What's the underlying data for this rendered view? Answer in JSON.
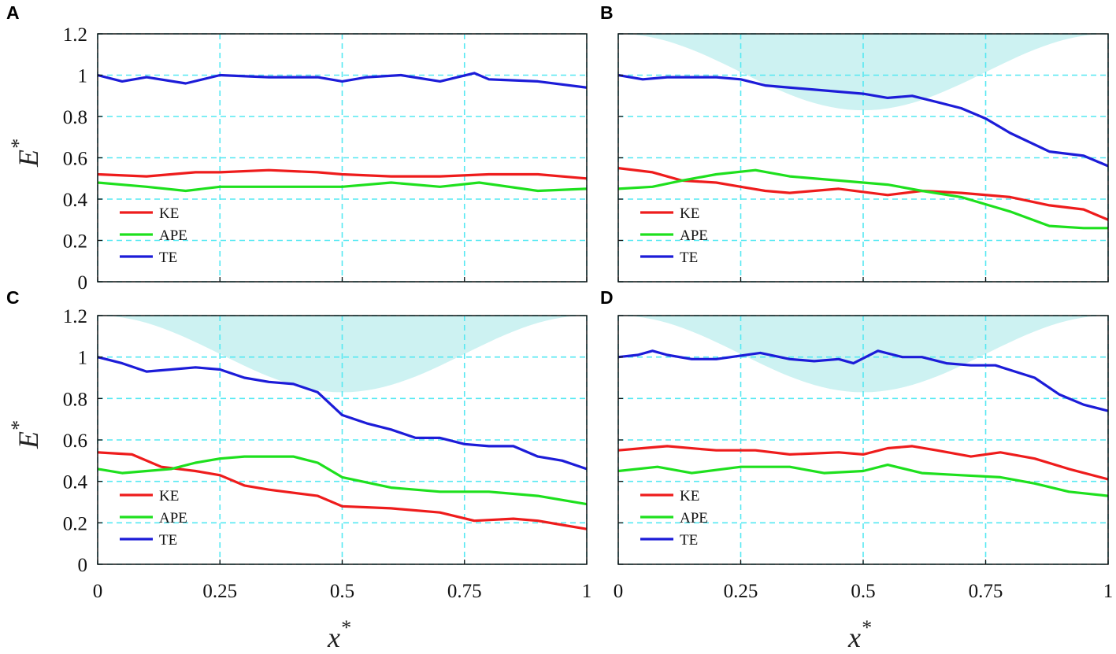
{
  "colors": {
    "KE": "#ee1c1c",
    "APE": "#1ee01e",
    "TE": "#1c1cd8",
    "grid": "#55e8f2",
    "topography": "#cdf2f2"
  },
  "axis_text": {
    "ylabel_main": "E",
    "ylabel_sup": "*",
    "xlabel_main": "x",
    "xlabel_sup": "*"
  },
  "chart_data": [
    {
      "panel": "A",
      "type": "line",
      "xlim": [
        0,
        1
      ],
      "ylim": [
        0,
        1.2
      ],
      "xticks": [
        "0",
        "0.25",
        "0.5",
        "0.75",
        "1"
      ],
      "yticks": [
        "0",
        "0.2",
        "0.4",
        "0.6",
        "0.8",
        "1",
        "1.2"
      ],
      "grid": true,
      "legend": "bottom-left",
      "topography": false,
      "series": [
        {
          "name": "KE",
          "x": [
            0,
            0.1,
            0.2,
            0.25,
            0.35,
            0.45,
            0.5,
            0.6,
            0.7,
            0.8,
            0.9,
            1
          ],
          "y": [
            0.52,
            0.51,
            0.53,
            0.53,
            0.54,
            0.53,
            0.52,
            0.51,
            0.51,
            0.52,
            0.52,
            0.5
          ]
        },
        {
          "name": "APE",
          "x": [
            0,
            0.1,
            0.18,
            0.25,
            0.35,
            0.45,
            0.5,
            0.6,
            0.7,
            0.78,
            0.9,
            1
          ],
          "y": [
            0.48,
            0.46,
            0.44,
            0.46,
            0.46,
            0.46,
            0.46,
            0.48,
            0.46,
            0.48,
            0.44,
            0.45
          ]
        },
        {
          "name": "TE",
          "x": [
            0,
            0.05,
            0.1,
            0.18,
            0.25,
            0.35,
            0.45,
            0.5,
            0.55,
            0.62,
            0.7,
            0.77,
            0.8,
            0.9,
            1
          ],
          "y": [
            1.0,
            0.97,
            0.99,
            0.96,
            1.0,
            0.99,
            0.99,
            0.97,
            0.99,
            1.0,
            0.97,
            1.01,
            0.98,
            0.97,
            0.94
          ]
        }
      ]
    },
    {
      "panel": "B",
      "type": "line",
      "xlim": [
        0,
        1
      ],
      "ylim": [
        0,
        1.2
      ],
      "xticks": [
        "0",
        "0.25",
        "0.5",
        "0.75",
        "1"
      ],
      "yticks": [
        "0",
        "0.2",
        "0.4",
        "0.6",
        "0.8",
        "1",
        "1.2"
      ],
      "grid": true,
      "legend": "bottom-left",
      "topography": true,
      "series": [
        {
          "name": "KE",
          "x": [
            0,
            0.07,
            0.13,
            0.2,
            0.25,
            0.3,
            0.35,
            0.45,
            0.55,
            0.62,
            0.7,
            0.8,
            0.88,
            0.95,
            1
          ],
          "y": [
            0.55,
            0.53,
            0.49,
            0.48,
            0.46,
            0.44,
            0.43,
            0.45,
            0.42,
            0.44,
            0.43,
            0.41,
            0.37,
            0.35,
            0.3
          ]
        },
        {
          "name": "APE",
          "x": [
            0,
            0.07,
            0.13,
            0.2,
            0.28,
            0.35,
            0.45,
            0.55,
            0.62,
            0.7,
            0.8,
            0.88,
            0.95,
            1
          ],
          "y": [
            0.45,
            0.46,
            0.49,
            0.52,
            0.54,
            0.51,
            0.49,
            0.47,
            0.44,
            0.41,
            0.34,
            0.27,
            0.26,
            0.26
          ]
        },
        {
          "name": "TE",
          "x": [
            0,
            0.05,
            0.1,
            0.2,
            0.25,
            0.3,
            0.4,
            0.5,
            0.55,
            0.6,
            0.65,
            0.7,
            0.75,
            0.8,
            0.88,
            0.95,
            1
          ],
          "y": [
            1.0,
            0.98,
            0.99,
            0.99,
            0.98,
            0.95,
            0.93,
            0.91,
            0.89,
            0.9,
            0.87,
            0.84,
            0.79,
            0.72,
            0.63,
            0.61,
            0.56
          ]
        }
      ]
    },
    {
      "panel": "C",
      "type": "line",
      "xlim": [
        0,
        1
      ],
      "ylim": [
        0,
        1.2
      ],
      "xticks": [
        "0",
        "0.25",
        "0.5",
        "0.75",
        "1"
      ],
      "yticks": [
        "0",
        "0.2",
        "0.4",
        "0.6",
        "0.8",
        "1",
        "1.2"
      ],
      "grid": true,
      "legend": "bottom-left",
      "topography": true,
      "series": [
        {
          "name": "KE",
          "x": [
            0,
            0.07,
            0.13,
            0.2,
            0.25,
            0.3,
            0.35,
            0.45,
            0.5,
            0.6,
            0.7,
            0.77,
            0.85,
            0.9,
            0.95,
            1
          ],
          "y": [
            0.54,
            0.53,
            0.47,
            0.45,
            0.43,
            0.38,
            0.36,
            0.33,
            0.28,
            0.27,
            0.25,
            0.21,
            0.22,
            0.21,
            0.19,
            0.17
          ]
        },
        {
          "name": "APE",
          "x": [
            0,
            0.05,
            0.1,
            0.15,
            0.2,
            0.25,
            0.3,
            0.35,
            0.4,
            0.45,
            0.5,
            0.6,
            0.7,
            0.8,
            0.9,
            1
          ],
          "y": [
            0.46,
            0.44,
            0.45,
            0.46,
            0.49,
            0.51,
            0.52,
            0.52,
            0.52,
            0.49,
            0.42,
            0.37,
            0.35,
            0.35,
            0.33,
            0.29
          ]
        },
        {
          "name": "TE",
          "x": [
            0,
            0.05,
            0.1,
            0.15,
            0.2,
            0.25,
            0.3,
            0.35,
            0.4,
            0.45,
            0.5,
            0.55,
            0.6,
            0.65,
            0.7,
            0.75,
            0.8,
            0.85,
            0.9,
            0.95,
            1
          ],
          "y": [
            1.0,
            0.97,
            0.93,
            0.94,
            0.95,
            0.94,
            0.9,
            0.88,
            0.87,
            0.83,
            0.72,
            0.68,
            0.65,
            0.61,
            0.61,
            0.58,
            0.57,
            0.57,
            0.52,
            0.5,
            0.46
          ]
        }
      ]
    },
    {
      "panel": "D",
      "type": "line",
      "xlim": [
        0,
        1
      ],
      "ylim": [
        0,
        1.2
      ],
      "xticks": [
        "0",
        "0.25",
        "0.5",
        "0.75",
        "1"
      ],
      "yticks": [
        "0",
        "0.2",
        "0.4",
        "0.6",
        "0.8",
        "1",
        "1.2"
      ],
      "grid": true,
      "legend": "bottom-left",
      "topography": true,
      "series": [
        {
          "name": "KE",
          "x": [
            0,
            0.05,
            0.1,
            0.2,
            0.28,
            0.35,
            0.45,
            0.5,
            0.55,
            0.6,
            0.65,
            0.72,
            0.78,
            0.85,
            0.92,
            1
          ],
          "y": [
            0.55,
            0.56,
            0.57,
            0.55,
            0.55,
            0.53,
            0.54,
            0.53,
            0.56,
            0.57,
            0.55,
            0.52,
            0.54,
            0.51,
            0.46,
            0.41
          ]
        },
        {
          "name": "APE",
          "x": [
            0,
            0.08,
            0.15,
            0.25,
            0.35,
            0.42,
            0.5,
            0.55,
            0.62,
            0.7,
            0.78,
            0.85,
            0.92,
            1
          ],
          "y": [
            0.45,
            0.47,
            0.44,
            0.47,
            0.47,
            0.44,
            0.45,
            0.48,
            0.44,
            0.43,
            0.42,
            0.39,
            0.35,
            0.33
          ]
        },
        {
          "name": "TE",
          "x": [
            0,
            0.04,
            0.07,
            0.1,
            0.15,
            0.2,
            0.29,
            0.35,
            0.4,
            0.45,
            0.48,
            0.53,
            0.58,
            0.62,
            0.67,
            0.72,
            0.77,
            0.85,
            0.9,
            0.95,
            1
          ],
          "y": [
            1.0,
            1.01,
            1.03,
            1.01,
            0.99,
            0.99,
            1.02,
            0.99,
            0.98,
            0.99,
            0.97,
            1.03,
            1.0,
            1.0,
            0.97,
            0.96,
            0.96,
            0.9,
            0.82,
            0.77,
            0.74
          ]
        }
      ]
    }
  ]
}
